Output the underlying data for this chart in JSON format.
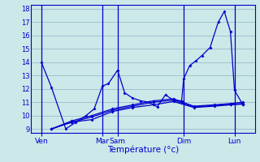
{
  "background_color": "#cce8e8",
  "grid_color": "#99bbcc",
  "line_color": "#0000cc",
  "title": "Température (°c)",
  "yticks": [
    9,
    10,
    11,
    12,
    13,
    14,
    15,
    16,
    17,
    18
  ],
  "ylim": [
    8.7,
    18.3
  ],
  "xlim": [
    -0.5,
    10.5
  ],
  "xtick_positions": [
    0,
    3.0,
    3.75,
    7.0,
    9.5
  ],
  "xtick_labels": [
    "Ven",
    "Mar",
    "Sam",
    "Dim",
    "Lun"
  ],
  "vline_positions": [
    0,
    3.0,
    3.75,
    7.0,
    9.5
  ],
  "lines": [
    {
      "points": [
        [
          0.0,
          14.0
        ],
        [
          0.5,
          12.1
        ],
        [
          1.2,
          9.0
        ],
        [
          1.7,
          9.5
        ],
        [
          2.2,
          10.0
        ],
        [
          2.6,
          10.5
        ],
        [
          3.0,
          12.2
        ],
        [
          3.3,
          12.4
        ],
        [
          3.75,
          13.4
        ],
        [
          4.1,
          11.7
        ],
        [
          4.5,
          11.3
        ],
        [
          4.9,
          11.1
        ],
        [
          5.3,
          11.0
        ],
        [
          5.7,
          10.65
        ],
        [
          6.1,
          11.55
        ],
        [
          6.5,
          11.15
        ],
        [
          6.9,
          11.1
        ],
        [
          7.0,
          12.75
        ],
        [
          7.3,
          13.75
        ],
        [
          7.6,
          14.1
        ],
        [
          7.9,
          14.5
        ],
        [
          8.3,
          15.1
        ],
        [
          8.7,
          17.0
        ],
        [
          9.0,
          17.8
        ],
        [
          9.3,
          16.3
        ],
        [
          9.5,
          11.9
        ],
        [
          9.9,
          10.85
        ]
      ]
    },
    {
      "points": [
        [
          0.5,
          9.0
        ],
        [
          1.5,
          9.5
        ],
        [
          2.5,
          9.7
        ],
        [
          3.5,
          10.3
        ],
        [
          4.5,
          10.6
        ],
        [
          5.5,
          10.8
        ],
        [
          6.5,
          11.05
        ],
        [
          7.5,
          10.6
        ],
        [
          8.5,
          10.7
        ],
        [
          9.3,
          10.8
        ],
        [
          9.9,
          10.85
        ]
      ]
    },
    {
      "points": [
        [
          0.5,
          9.0
        ],
        [
          1.5,
          9.5
        ],
        [
          2.5,
          9.9
        ],
        [
          3.5,
          10.4
        ],
        [
          4.5,
          10.7
        ],
        [
          5.5,
          11.0
        ],
        [
          6.5,
          11.15
        ],
        [
          7.5,
          10.65
        ],
        [
          8.5,
          10.75
        ],
        [
          9.3,
          10.85
        ],
        [
          9.9,
          10.9
        ]
      ]
    },
    {
      "points": [
        [
          0.5,
          9.0
        ],
        [
          1.5,
          9.6
        ],
        [
          2.5,
          10.0
        ],
        [
          3.5,
          10.5
        ],
        [
          4.5,
          10.8
        ],
        [
          5.5,
          11.1
        ],
        [
          6.5,
          11.25
        ],
        [
          7.5,
          10.7
        ],
        [
          8.5,
          10.8
        ],
        [
          9.3,
          10.9
        ],
        [
          9.9,
          11.0
        ]
      ]
    }
  ]
}
